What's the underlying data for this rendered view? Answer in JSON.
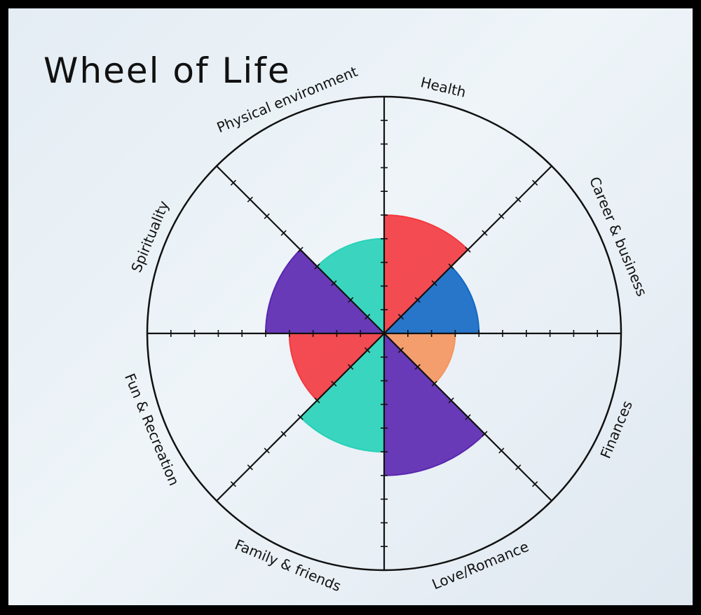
{
  "title": "Wheel of Life",
  "chart_data": {
    "type": "pie",
    "title": "Wheel of Life",
    "scale_max": 10,
    "categories": [
      "Health",
      "Career & business",
      "Finances",
      "Love/Romance",
      "Family & friends",
      "Fun & Recreation",
      "Spirituality",
      "Physical environment"
    ],
    "values": [
      5,
      4,
      3,
      6,
      5,
      4,
      5,
      4
    ],
    "colors": [
      "#f4383f",
      "#1268c4",
      "#f5955e",
      "#5a26b0",
      "#27d1b8",
      "#f4383f",
      "#5a26b0",
      "#27d1b8"
    ]
  }
}
